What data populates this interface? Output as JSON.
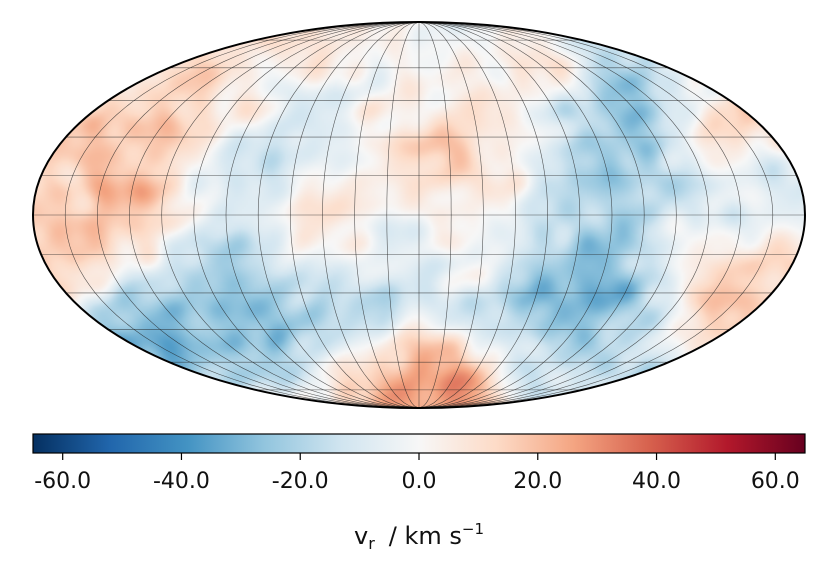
{
  "chart_data": {
    "type": "heatmap",
    "projection": "mollweide",
    "title": "",
    "graticule": {
      "meridians_deg": [
        -165,
        -150,
        -135,
        -120,
        -105,
        -90,
        -75,
        -60,
        -45,
        -30,
        -15,
        0,
        15,
        30,
        45,
        60,
        75,
        90,
        105,
        120,
        135,
        150,
        165
      ],
      "parallels_deg": [
        -75,
        -60,
        -45,
        -30,
        -15,
        0,
        15,
        30,
        45,
        60,
        75
      ]
    },
    "colorbar": {
      "colormap": "RdBu_r",
      "vmin": -65,
      "vmax": 65,
      "ticks": [
        -60,
        -40,
        -20,
        0,
        20,
        40,
        60
      ],
      "tick_labels": [
        "-60.0",
        "-40.0",
        "-20.0",
        "0.0",
        "20.0",
        "40.0",
        "60.0"
      ],
      "label_symbol": "v",
      "label_subscript": "r",
      "label_units": "/ km s",
      "label_exponent": "−1"
    },
    "features": [
      {
        "kind": "blue",
        "lon": -55,
        "lat": 45,
        "value": -38
      },
      {
        "kind": "blue",
        "lon": -70,
        "lat": 20,
        "value": -30
      },
      {
        "kind": "blue",
        "lon": -95,
        "lat": -25,
        "value": -25
      },
      {
        "kind": "blue",
        "lon": -140,
        "lat": -40,
        "value": -40
      },
      {
        "kind": "blue",
        "lon": -110,
        "lat": -45,
        "value": -32
      },
      {
        "kind": "blue",
        "lon": -20,
        "lat": -30,
        "value": -35
      },
      {
        "kind": "blue",
        "lon": 20,
        "lat": 60,
        "value": -25
      },
      {
        "kind": "blue",
        "lon": 75,
        "lat": 15,
        "value": -45
      },
      {
        "kind": "blue",
        "lon": 90,
        "lat": -25,
        "value": -50
      },
      {
        "kind": "blue",
        "lon": 55,
        "lat": -35,
        "value": -35
      },
      {
        "kind": "blue",
        "lon": 105,
        "lat": 40,
        "value": -30
      },
      {
        "kind": "blue",
        "lon": 130,
        "lat": 50,
        "value": -30
      },
      {
        "kind": "blue",
        "lon": 150,
        "lat": 10,
        "value": -18
      },
      {
        "kind": "blue",
        "lon": -5,
        "lat": 0,
        "value": -15
      },
      {
        "kind": "blue",
        "lon": 130,
        "lat": -60,
        "value": -20
      },
      {
        "kind": "red",
        "lon": -15,
        "lat": 35,
        "value": 35
      },
      {
        "kind": "red",
        "lon": 40,
        "lat": 20,
        "value": 30
      },
      {
        "kind": "red",
        "lon": 5,
        "lat": -65,
        "value": 40
      },
      {
        "kind": "red",
        "lon": -150,
        "lat": 15,
        "value": 25
      },
      {
        "kind": "red",
        "lon": -120,
        "lat": 40,
        "value": 25
      },
      {
        "kind": "red",
        "lon": 150,
        "lat": -30,
        "value": 32
      },
      {
        "kind": "red",
        "lon": 160,
        "lat": 35,
        "value": 25
      },
      {
        "kind": "red",
        "lon": -45,
        "lat": 0,
        "value": 22
      },
      {
        "kind": "red",
        "lon": 20,
        "lat": -20,
        "value": 20
      },
      {
        "kind": "red",
        "lon": -160,
        "lat": -15,
        "value": 22
      },
      {
        "kind": "red",
        "lon": 65,
        "lat": 50,
        "value": 22
      },
      {
        "kind": "red",
        "lon": -30,
        "lat": 65,
        "value": 15
      },
      {
        "kind": "red",
        "lon": -75,
        "lat": 60,
        "value": 18
      }
    ],
    "turbulence": {
      "seed": 7,
      "amplitude": 16
    }
  }
}
